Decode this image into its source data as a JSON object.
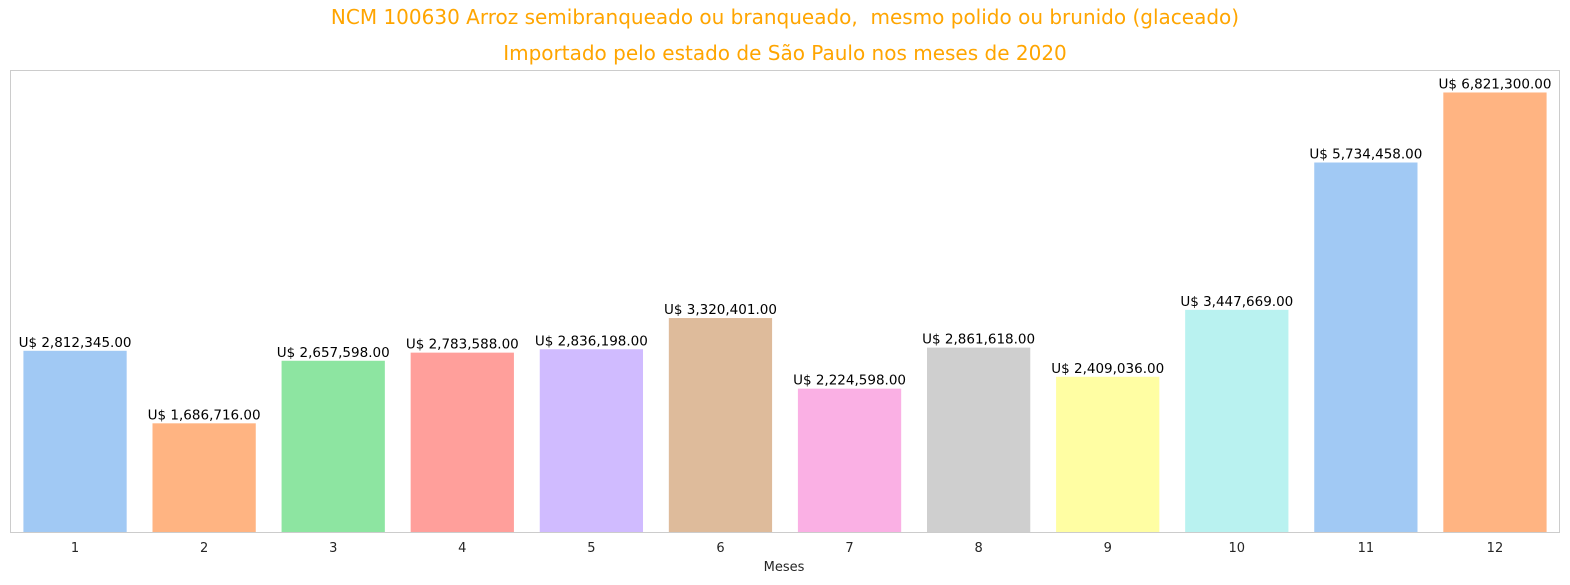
{
  "chart_data": {
    "type": "bar",
    "title": "NCM 100630 Arroz semibranqueado ou branqueado,  mesmo polido ou brunido (glaceado)",
    "subtitle": "Importado pelo estado de São Paulo nos meses de 2020",
    "xlabel": "Meses",
    "ylabel": "",
    "categories": [
      "1",
      "2",
      "3",
      "4",
      "5",
      "6",
      "7",
      "8",
      "9",
      "10",
      "11",
      "12"
    ],
    "values": [
      2812345.0,
      1686716.0,
      2657598.0,
      2783588.0,
      2836198.0,
      3320401.0,
      2224598.0,
      2861618.0,
      2409036.0,
      3447669.0,
      5734458.0,
      6821300.0
    ],
    "value_labels": [
      "U$ 2,812,345.00",
      "U$ 1,686,716.00",
      "U$ 2,657,598.00",
      "U$ 2,783,588.00",
      "U$ 2,836,198.00",
      "U$ 3,320,401.00",
      "U$ 2,224,598.00",
      "U$ 2,861,618.00",
      "U$ 2,409,036.00",
      "U$ 3,447,669.00",
      "U$ 5,734,458.00",
      "U$ 6,821,300.00"
    ],
    "ylim": [
      0,
      7162365
    ],
    "grid": false,
    "colors": [
      "#a1c9f4",
      "#ffb482",
      "#8de5a1",
      "#ff9f9b",
      "#d0bbff",
      "#debb9b",
      "#fab0e4",
      "#cfcfcf",
      "#fffea3",
      "#b9f2f0",
      "#a1c9f4",
      "#ffb482"
    ],
    "frame_color": "#cccccc",
    "title_color": "#FFA500"
  }
}
